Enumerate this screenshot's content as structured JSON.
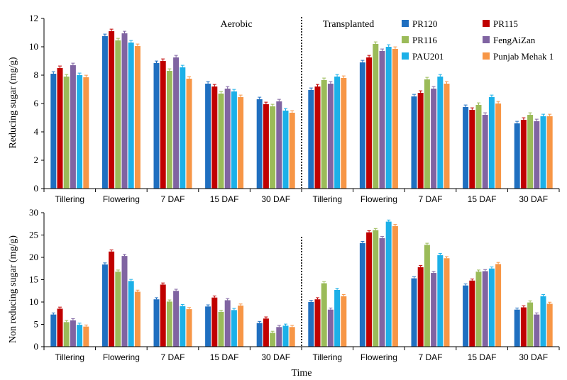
{
  "legend": [
    {
      "name": "PR120",
      "color": "#1f6fc0"
    },
    {
      "name": "PR115",
      "color": "#c00000"
    },
    {
      "name": "PR116",
      "color": "#9bbb59"
    },
    {
      "name": "FengAiZan",
      "color": "#8064a2"
    },
    {
      "name": "PAU201",
      "color": "#1cb0e8"
    },
    {
      "name": "Punjab Mehak 1",
      "color": "#f79646"
    }
  ],
  "xlabel": "Time",
  "chart_data": [
    {
      "type": "bar",
      "ylabel": "Reducing sugar (mg/g)",
      "ylim": [
        0,
        12
      ],
      "yticks": [
        0,
        2,
        4,
        6,
        8,
        10,
        12
      ],
      "group_labels": [
        "Aerobic",
        "Transplanted"
      ],
      "categories": [
        "Tillering",
        "Flowering",
        "7 DAF",
        "15 DAF",
        "30 DAF",
        "Tillering",
        "Flowering",
        "7 DAF",
        "15 DAF",
        "30 DAF"
      ],
      "series": [
        {
          "name": "PR120",
          "values": [
            8.1,
            10.75,
            8.85,
            7.4,
            6.3,
            6.95,
            8.9,
            6.5,
            5.75,
            4.6
          ]
        },
        {
          "name": "PR115",
          "values": [
            8.5,
            11.1,
            9.0,
            7.2,
            5.95,
            7.2,
            9.25,
            6.75,
            5.55,
            4.85
          ]
        },
        {
          "name": "PR116",
          "values": [
            7.9,
            10.45,
            8.3,
            6.7,
            5.8,
            7.65,
            10.2,
            7.7,
            5.9,
            5.2
          ]
        },
        {
          "name": "FengAiZan",
          "values": [
            8.7,
            10.95,
            9.25,
            7.05,
            6.15,
            7.4,
            9.7,
            7.05,
            5.2,
            4.75
          ]
        },
        {
          "name": "PAU201",
          "values": [
            8.0,
            10.3,
            8.55,
            6.85,
            5.5,
            7.9,
            10.0,
            7.9,
            6.45,
            5.1
          ]
        },
        {
          "name": "Punjab Mehak 1",
          "values": [
            7.85,
            10.05,
            7.75,
            6.45,
            5.35,
            7.8,
            9.85,
            7.4,
            6.0,
            5.1
          ]
        }
      ]
    },
    {
      "type": "bar",
      "ylabel": "Non reducing sugar (mg/g)",
      "ylim": [
        0,
        30
      ],
      "yticks": [
        0,
        5,
        10,
        15,
        20,
        25,
        30
      ],
      "categories": [
        "Tillering",
        "Flowering",
        "7 DAF",
        "15 DAF",
        "30 DAF",
        "Tillering",
        "Flowering",
        "7 DAF",
        "15 DAF",
        "30 DAF"
      ],
      "series": [
        {
          "name": "PR120",
          "values": [
            7.2,
            18.4,
            10.6,
            9.0,
            5.3,
            10.0,
            23.2,
            15.3,
            13.7,
            8.3
          ]
        },
        {
          "name": "PR115",
          "values": [
            8.5,
            21.3,
            13.9,
            11.0,
            6.3,
            10.6,
            25.6,
            17.8,
            14.8,
            8.8
          ]
        },
        {
          "name": "PR116",
          "values": [
            5.5,
            16.8,
            10.1,
            7.8,
            3.1,
            14.2,
            26.1,
            22.8,
            16.8,
            9.9
          ]
        },
        {
          "name": "FengAiZan",
          "values": [
            5.9,
            20.3,
            12.5,
            10.4,
            4.4,
            8.3,
            24.3,
            16.5,
            16.9,
            7.2
          ]
        },
        {
          "name": "PAU201",
          "values": [
            4.9,
            14.7,
            9.1,
            8.2,
            4.7,
            12.7,
            28.0,
            20.5,
            17.5,
            11.3
          ]
        },
        {
          "name": "Punjab Mehak 1",
          "values": [
            4.5,
            12.3,
            8.4,
            9.2,
            4.4,
            11.3,
            27.0,
            19.8,
            18.5,
            9.6
          ]
        }
      ]
    }
  ]
}
